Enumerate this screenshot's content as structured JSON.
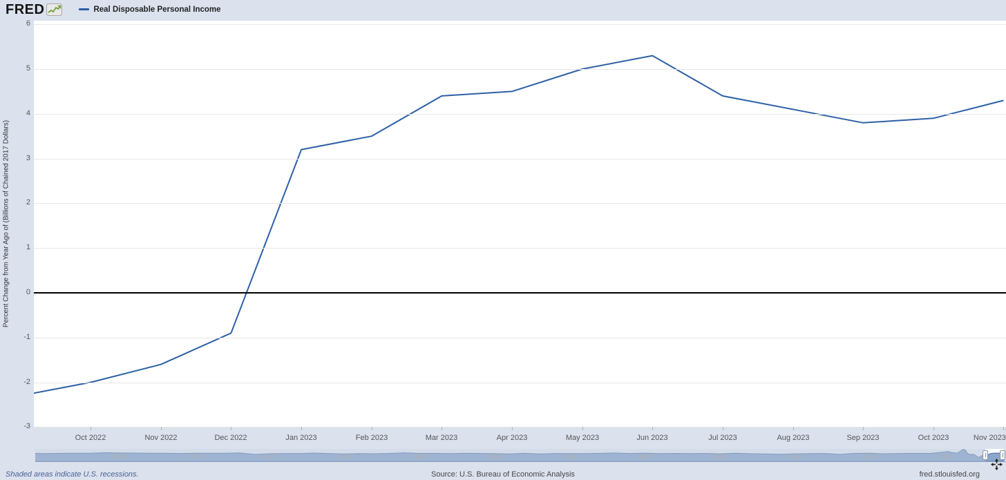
{
  "header": {
    "logo_text": "FRED",
    "logo_icon": "sparkline-chart-icon",
    "legend": {
      "label": "Real Disposable Personal Income",
      "color": "#2c5fa6"
    }
  },
  "chart_data": [
    {
      "type": "line",
      "title": "Real Disposable Personal Income",
      "ylabel": "Percent Change from Year Ago of (Billions of Chained 2017 Dollars)",
      "xlabel": "",
      "ylim": [
        -3,
        6
      ],
      "yticks": [
        6,
        5,
        4,
        3,
        2,
        1,
        0,
        -1,
        -2,
        -3
      ],
      "grid": "horizontal",
      "zero_line": true,
      "legend_position": "top-left-header",
      "series": [
        {
          "name": "Real Disposable Personal Income",
          "color": "#2c5fa6",
          "x": [
            "Sep 2022",
            "Oct 2022",
            "Nov 2022",
            "Dec 2022",
            "Jan 2023",
            "Feb 2023",
            "Mar 2023",
            "Apr 2023",
            "May 2023",
            "Jun 2023",
            "Jul 2023",
            "Aug 2023",
            "Sep 2023",
            "Oct 2023",
            "Nov 2023"
          ],
          "values": [
            -2.3,
            -2.0,
            -1.6,
            -0.9,
            3.2,
            3.5,
            4.4,
            4.5,
            5.0,
            5.3,
            4.4,
            4.1,
            3.8,
            3.9,
            4.3
          ]
        }
      ],
      "xtick_labels": [
        "Oct 2022",
        "Nov 2022",
        "Dec 2022",
        "Jan 2023",
        "Feb 2023",
        "Mar 2023",
        "Apr 2023",
        "May 2023",
        "Jun 2023",
        "Jul 2023",
        "Aug 2023",
        "Sep 2023",
        "Oct 2023",
        "Nov 2023"
      ]
    },
    {
      "type": "area",
      "name": "range-selector-minimap",
      "year_labels": [
        "1965",
        "1970",
        "1975",
        "1980",
        "1985",
        "1990",
        "1995",
        "2000",
        "2005",
        "2010",
        "2015",
        "2020"
      ],
      "selected_range": {
        "start": "Sep 2022",
        "end": "Nov 2023"
      },
      "points": [
        [
          1959,
          4.2
        ],
        [
          1960,
          2.5
        ],
        [
          1961,
          3.8
        ],
        [
          1962,
          4.4
        ],
        [
          1963,
          4.0
        ],
        [
          1964,
          6.6
        ],
        [
          1965,
          5.5
        ],
        [
          1966,
          4.9
        ],
        [
          1967,
          4.4
        ],
        [
          1968,
          4.3
        ],
        [
          1969,
          3.0
        ],
        [
          1970,
          3.9
        ],
        [
          1971,
          3.9
        ],
        [
          1972,
          4.1
        ],
        [
          1973,
          6.0
        ],
        [
          1974,
          -1.3
        ],
        [
          1975,
          1.8
        ],
        [
          1976,
          3.1
        ],
        [
          1977,
          3.1
        ],
        [
          1978,
          4.9
        ],
        [
          1979,
          2.2
        ],
        [
          1980,
          0.5
        ],
        [
          1981,
          2.3
        ],
        [
          1982,
          1.8
        ],
        [
          1983,
          3.5
        ],
        [
          1984,
          6.4
        ],
        [
          1985,
          3.2
        ],
        [
          1986,
          3.7
        ],
        [
          1987,
          2.7
        ],
        [
          1988,
          4.3
        ],
        [
          1989,
          3.2
        ],
        [
          1990,
          2.5
        ],
        [
          1991,
          0.9
        ],
        [
          1992,
          3.8
        ],
        [
          1993,
          1.1
        ],
        [
          1994,
          2.9
        ],
        [
          1995,
          2.8
        ],
        [
          1996,
          2.8
        ],
        [
          1997,
          3.6
        ],
        [
          1998,
          5.3
        ],
        [
          1999,
          3.1
        ],
        [
          2000,
          4.7
        ],
        [
          2001,
          2.2
        ],
        [
          2002,
          3.2
        ],
        [
          2003,
          2.6
        ],
        [
          2004,
          3.4
        ],
        [
          2005,
          1.3
        ],
        [
          2006,
          3.9
        ],
        [
          2007,
          2.1
        ],
        [
          2008,
          1.1
        ],
        [
          2009,
          -0.6
        ],
        [
          2010,
          1.2
        ],
        [
          2011,
          2.4
        ],
        [
          2012,
          3.1
        ],
        [
          2013,
          -1.4
        ],
        [
          2014,
          3.6
        ],
        [
          2015,
          4.2
        ],
        [
          2016,
          1.8
        ],
        [
          2017,
          3.0
        ],
        [
          2018,
          3.6
        ],
        [
          2019,
          3.2
        ],
        [
          2020.2,
          12
        ],
        [
          2020.4,
          8.5
        ],
        [
          2020.6,
          6.5
        ],
        [
          2020.8,
          4
        ],
        [
          2021.0,
          13
        ],
        [
          2021.2,
          28
        ],
        [
          2021.35,
          20
        ],
        [
          2021.5,
          2
        ],
        [
          2021.7,
          -2
        ],
        [
          2021.9,
          -1
        ],
        [
          2022.1,
          -10
        ],
        [
          2022.25,
          -17
        ],
        [
          2022.4,
          -9
        ],
        [
          2022.6,
          -4
        ],
        [
          2022.75,
          -2.3
        ],
        [
          2022.9,
          -1.8
        ],
        [
          2023.05,
          3.2
        ],
        [
          2023.2,
          4.4
        ],
        [
          2023.4,
          4.9
        ],
        [
          2023.6,
          4.2
        ],
        [
          2023.75,
          3.85
        ],
        [
          2023.92,
          4.3
        ]
      ]
    }
  ],
  "colors": {
    "page_bg": "#dbe2ee",
    "plot_bg": "#ffffff",
    "grid": "#e7e7e7",
    "zero_line": "#000000",
    "line": "#2c5fa6",
    "minimap_fill": "#8aa7cb",
    "minimap_stroke": "#46709e",
    "minimap_mask": "rgba(176,192,216,0.55)",
    "logo_icon_green": "#6f9f3e"
  },
  "footer": {
    "recession_note": "Shaded areas indicate U.S. recessions.",
    "source": "Source: U.S. Bureau of Economic Analysis",
    "site": "fred.stlouisfed.org"
  }
}
